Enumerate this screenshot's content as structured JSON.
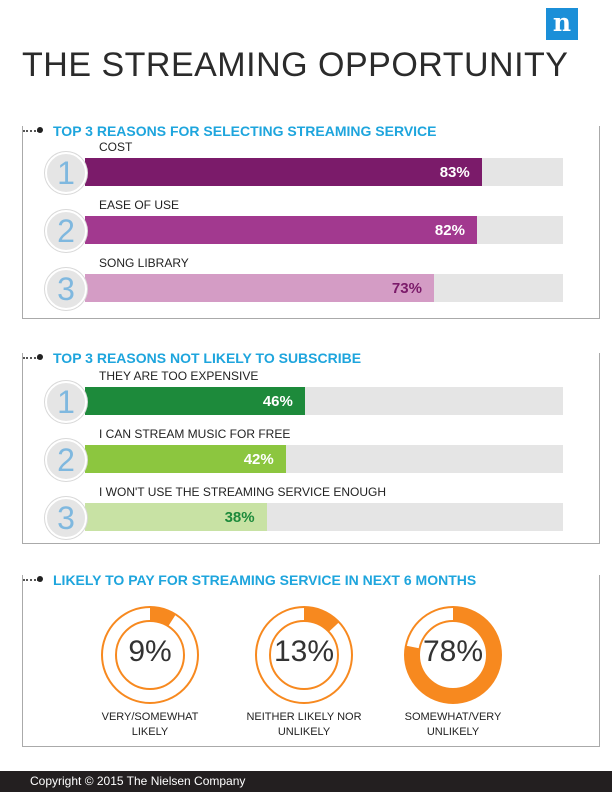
{
  "logo": {
    "letter": "n"
  },
  "title": "THE STREAMING OPPORTUNITY",
  "sections": {
    "selecting": {
      "title": "TOP 3 REASONS FOR SELECTING STREAMING SERVICE",
      "items": [
        {
          "rank": "1",
          "label": "COST",
          "value": 83,
          "value_label": "83%",
          "color": "#7b1b6a",
          "text_color": "#ffffff"
        },
        {
          "rank": "2",
          "label": "EASE OF USE",
          "value": 82,
          "value_label": "82%",
          "color": "#a2398f",
          "text_color": "#ffffff"
        },
        {
          "rank": "3",
          "label": "SONG LIBRARY",
          "value": 73,
          "value_label": "73%",
          "color": "#d49cc5",
          "text_color": "#7b1b6a"
        }
      ]
    },
    "not_subscribe": {
      "title": "TOP 3 REASONS NOT LIKELY TO SUBSCRIBE",
      "items": [
        {
          "rank": "1",
          "label": "THEY ARE TOO EXPENSIVE",
          "value": 46,
          "value_label": "46%",
          "color": "#1d8a3b",
          "text_color": "#ffffff"
        },
        {
          "rank": "2",
          "label": "I CAN STREAM MUSIC FOR FREE",
          "value": 42,
          "value_label": "42%",
          "color": "#8cc63f",
          "text_color": "#ffffff"
        },
        {
          "rank": "3",
          "label": "I WON'T USE THE STREAMING SERVICE ENOUGH",
          "value": 38,
          "value_label": "38%",
          "color": "#c8e2a4",
          "text_color": "#1d8a3b"
        }
      ]
    },
    "likely_pay": {
      "title": "LIKELY TO PAY FOR STREAMING SERVICE IN NEXT 6 MONTHS",
      "items": [
        {
          "value": 9,
          "value_label": "9%",
          "label_line1": "VERY/SOMEWHAT",
          "label_line2": "LIKELY"
        },
        {
          "value": 13,
          "value_label": "13%",
          "label_line1": "NEITHER LIKELY NOR",
          "label_line2": "UNLIKELY"
        },
        {
          "value": 78,
          "value_label": "78%",
          "label_line1": "SOMEWHAT/VERY",
          "label_line2": "UNLIKELY"
        }
      ],
      "color": "#f7891f"
    }
  },
  "chart_data": [
    {
      "type": "bar",
      "title": "TOP 3 REASONS FOR SELECTING STREAMING SERVICE",
      "categories": [
        "COST",
        "EASE OF USE",
        "SONG LIBRARY"
      ],
      "values": [
        83,
        82,
        73
      ],
      "ylim": [
        0,
        100
      ]
    },
    {
      "type": "bar",
      "title": "TOP 3 REASONS NOT LIKELY TO SUBSCRIBE",
      "categories": [
        "THEY ARE TOO EXPENSIVE",
        "I CAN STREAM MUSIC FOR FREE",
        "I WON'T USE THE STREAMING SERVICE ENOUGH"
      ],
      "values": [
        46,
        42,
        38
      ],
      "ylim": [
        0,
        100
      ]
    },
    {
      "type": "pie",
      "title": "LIKELY TO PAY FOR STREAMING SERVICE IN NEXT 6 MONTHS",
      "categories": [
        "VERY/SOMEWHAT LIKELY",
        "NEITHER LIKELY NOR UNLIKELY",
        "SOMEWHAT/VERY UNLIKELY"
      ],
      "values": [
        9,
        13,
        78
      ]
    }
  ],
  "footer": {
    "copyright": "Copyright © 2015 The Nielsen Company"
  }
}
